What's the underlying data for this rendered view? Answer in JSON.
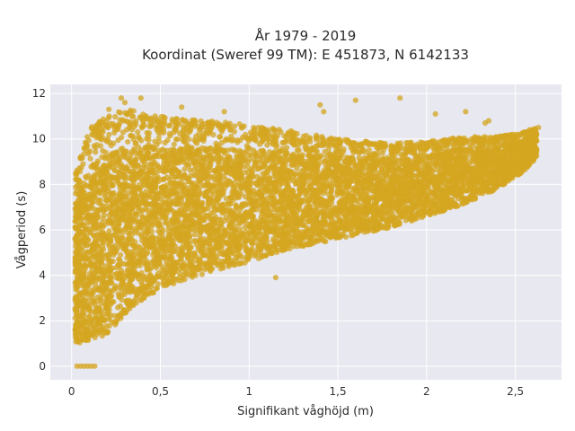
{
  "colors": {
    "plot_background": "#e8e8f0",
    "grid": "#ffffff",
    "marker": "#d4a520"
  },
  "chart_data": {
    "type": "scatter",
    "title": "År 1979 - 2019",
    "subtitle": "Koordinat (Sweref 99 TM): E 451873, N 6142133",
    "xlabel": "Signifikant våghöjd (m)",
    "ylabel": "Vågperiod (s)",
    "xlim": [
      -0.12,
      2.76
    ],
    "ylim": [
      -0.6,
      12.4
    ],
    "x_ticks": [
      0,
      0.5,
      1,
      1.5,
      2,
      2.5
    ],
    "x_tick_labels": [
      "0",
      "0,5",
      "1",
      "1,5",
      "2",
      "2,5"
    ],
    "y_ticks": [
      0,
      2,
      4,
      6,
      8,
      10,
      12
    ],
    "y_tick_labels": [
      "0",
      "2",
      "4",
      "6",
      "8",
      "10",
      "12"
    ],
    "grid": true,
    "legend": "none",
    "marker_color": "#d4a520",
    "point_cloud": {
      "dense_envelope": [
        {
          "x": 0.02,
          "y_min": 1.0,
          "y_max": 8.5
        },
        {
          "x": 0.1,
          "y_min": 1.1,
          "y_max": 10.5
        },
        {
          "x": 0.2,
          "y_min": 1.4,
          "y_max": 11.0
        },
        {
          "x": 0.3,
          "y_min": 2.3,
          "y_max": 11.3
        },
        {
          "x": 0.4,
          "y_min": 2.9,
          "y_max": 11.2
        },
        {
          "x": 0.5,
          "y_min": 3.4,
          "y_max": 11.0
        },
        {
          "x": 0.6,
          "y_min": 3.7,
          "y_max": 10.9
        },
        {
          "x": 0.8,
          "y_min": 4.2,
          "y_max": 10.8
        },
        {
          "x": 1.0,
          "y_min": 4.6,
          "y_max": 10.6
        },
        {
          "x": 1.2,
          "y_min": 5.1,
          "y_max": 10.4
        },
        {
          "x": 1.5,
          "y_min": 5.6,
          "y_max": 10.0
        },
        {
          "x": 1.8,
          "y_min": 6.1,
          "y_max": 9.8
        },
        {
          "x": 2.0,
          "y_min": 6.6,
          "y_max": 9.9
        },
        {
          "x": 2.2,
          "y_min": 7.1,
          "y_max": 10.1
        },
        {
          "x": 2.4,
          "y_min": 7.8,
          "y_max": 10.1
        },
        {
          "x": 2.55,
          "y_min": 8.6,
          "y_max": 10.3
        },
        {
          "x": 2.62,
          "y_min": 9.2,
          "y_max": 10.5
        }
      ],
      "zero_period_points": [
        {
          "x": 0.03,
          "y": 0
        },
        {
          "x": 0.05,
          "y": 0
        },
        {
          "x": 0.07,
          "y": 0
        },
        {
          "x": 0.09,
          "y": 0
        },
        {
          "x": 0.11,
          "y": 0
        },
        {
          "x": 0.13,
          "y": 0
        }
      ],
      "outliers": [
        {
          "x": 0.28,
          "y": 11.8
        },
        {
          "x": 0.39,
          "y": 11.8
        },
        {
          "x": 0.3,
          "y": 11.6
        },
        {
          "x": 0.21,
          "y": 11.3
        },
        {
          "x": 0.62,
          "y": 11.4
        },
        {
          "x": 0.86,
          "y": 11.2
        },
        {
          "x": 1.4,
          "y": 11.5
        },
        {
          "x": 1.42,
          "y": 11.2
        },
        {
          "x": 1.6,
          "y": 11.7
        },
        {
          "x": 1.85,
          "y": 11.8
        },
        {
          "x": 2.05,
          "y": 11.1
        },
        {
          "x": 2.22,
          "y": 11.2
        },
        {
          "x": 2.35,
          "y": 10.8
        },
        {
          "x": 2.33,
          "y": 10.7
        },
        {
          "x": 2.58,
          "y": 10.4
        },
        {
          "x": 2.63,
          "y": 10.5
        },
        {
          "x": 1.15,
          "y": 3.9
        },
        {
          "x": 1.75,
          "y": 6.1
        }
      ]
    }
  }
}
